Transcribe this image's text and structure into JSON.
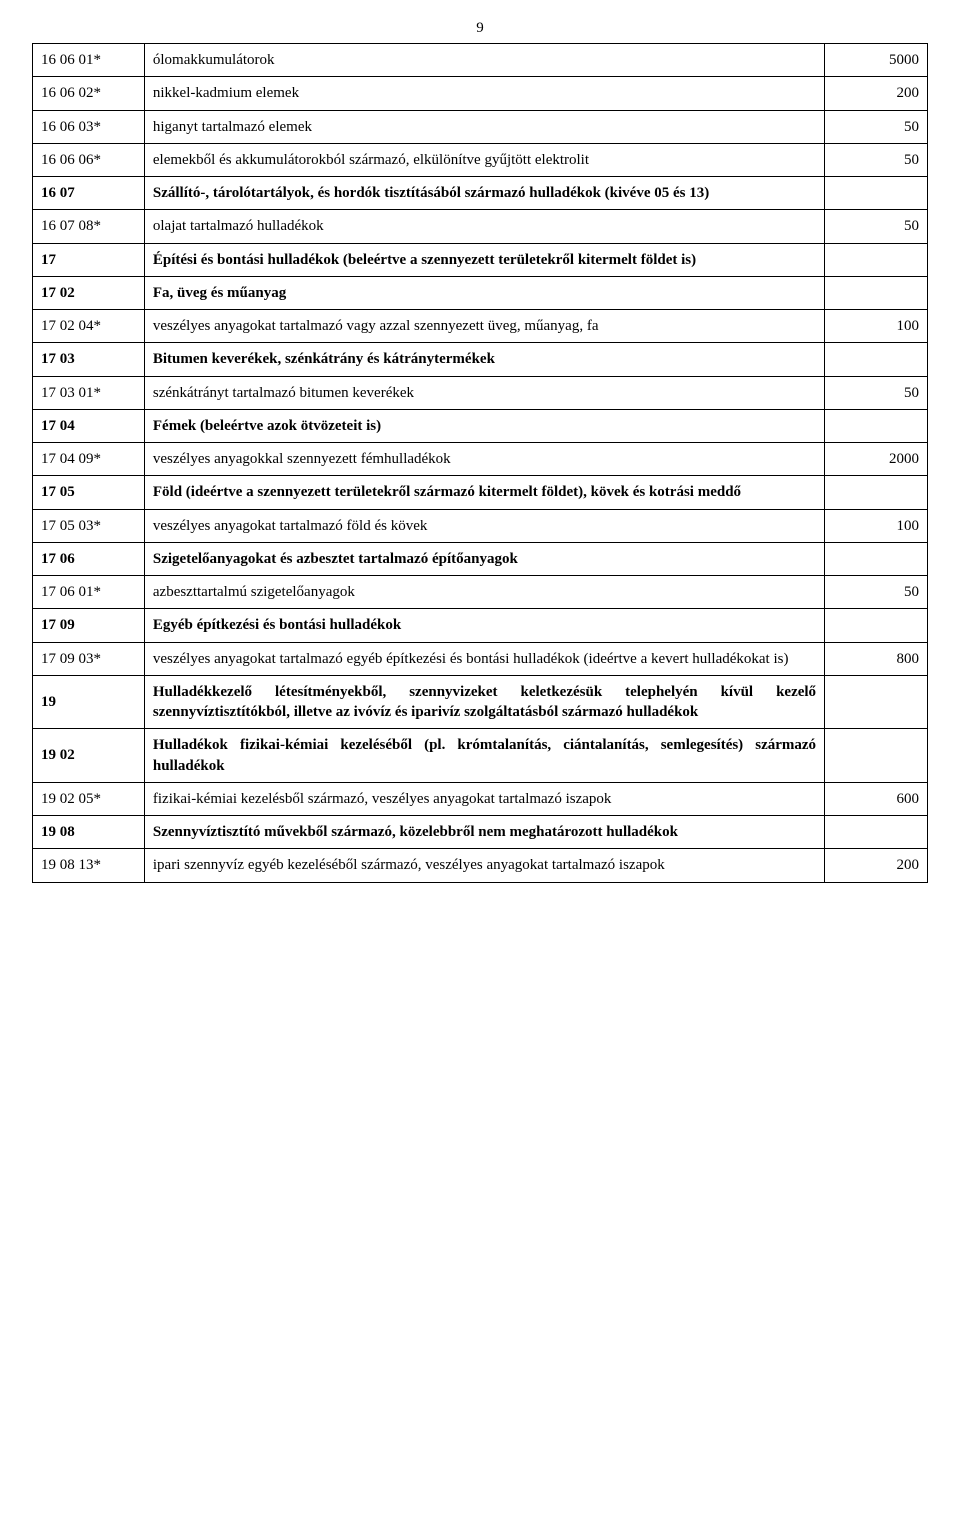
{
  "page_number": "9",
  "table": {
    "columns": {
      "code_width": "12.5%",
      "desc_width": "76%",
      "val_width": "11.5%"
    },
    "font_family": "Times New Roman",
    "font_size_pt": 12,
    "border_color": "#000000",
    "text_color": "#000000",
    "background_color": "#ffffff"
  },
  "rows": [
    {
      "code": "16 06 01*",
      "desc": "ólomakkumulátorok",
      "val": "5000",
      "bold": false
    },
    {
      "code": "16 06 02*",
      "desc": "nikkel-kadmium elemek",
      "val": "200",
      "bold": false
    },
    {
      "code": "16 06 03*",
      "desc": "higanyt tartalmazó elemek",
      "val": "50",
      "bold": false
    },
    {
      "code": "16 06 06*",
      "desc": "elemekből és akkumulátorokból származó, elkülönítve gyűjtött elektrolit",
      "val": "50",
      "bold": false
    },
    {
      "code": "16 07",
      "desc": "Szállító-, tárolótartályok, és hordók tisztításából származó hulladékok (kivéve 05 és 13)",
      "val": "",
      "bold": true
    },
    {
      "code": "16 07 08*",
      "desc": "olajat tartalmazó hulladékok",
      "val": "50",
      "bold": false
    },
    {
      "code": "17",
      "desc": "Építési és bontási hulladékok (beleértve a szennyezett területekről kitermelt földet is)",
      "val": "",
      "bold": true
    },
    {
      "code": "17 02",
      "desc": "Fa, üveg és műanyag",
      "val": "",
      "bold": true
    },
    {
      "code": "17 02 04*",
      "desc": "veszélyes anyagokat tartalmazó vagy azzal szennyezett üveg, műanyag, fa",
      "val": "100",
      "bold": false
    },
    {
      "code": "17 03",
      "desc": "Bitumen keverékek, szénkátrány és kátránytermékek",
      "val": "",
      "bold": true
    },
    {
      "code": "17 03 01*",
      "desc": "szénkátrányt tartalmazó bitumen keverékek",
      "val": "50",
      "bold": false
    },
    {
      "code": "17 04",
      "desc": "Fémek (beleértve azok ötvözeteit is)",
      "val": "",
      "bold": true
    },
    {
      "code": "17 04 09*",
      "desc": "veszélyes anyagokkal szennyezett fémhulladékok",
      "val": "2000",
      "bold": false
    },
    {
      "code": "17 05",
      "desc": "Föld (ideértve a szennyezett területekről származó kitermelt földet), kövek és kotrási meddő",
      "val": "",
      "bold": true
    },
    {
      "code": "17 05 03*",
      "desc": "veszélyes anyagokat tartalmazó föld és kövek",
      "val": "100",
      "bold": false
    },
    {
      "code": "17 06",
      "desc": "Szigetelőanyagokat és azbesztet tartalmazó építőanyagok",
      "val": "",
      "bold": true
    },
    {
      "code": "17 06 01*",
      "desc": "azbeszttartalmú szigetelőanyagok",
      "val": "50",
      "bold": false
    },
    {
      "code": "17 09",
      "desc": "Egyéb építkezési és bontási hulladékok",
      "val": "",
      "bold": true
    },
    {
      "code": "17 09 03*",
      "desc": "veszélyes anyagokat tartalmazó egyéb építkezési és bontási hulladékok (ideértve a kevert hulladékokat is)",
      "val": "800",
      "bold": false
    },
    {
      "code": "19",
      "desc": "Hulladékkezelő létesítményekből, szennyvizeket keletkezésük telephelyén kívül kezelő szennyvíztisztítókból, illetve az ivóvíz és iparivíz szolgáltatásból származó hulladékok",
      "val": "",
      "bold": true
    },
    {
      "code": "19 02",
      "desc": "Hulladékok fizikai-kémiai kezeléséből (pl. krómtalanítás, ciántalanítás, semlegesítés) származó hulladékok",
      "val": "",
      "bold": true
    },
    {
      "code": "19 02 05*",
      "desc": "fizikai-kémiai kezelésből származó, veszélyes anyagokat tartalmazó iszapok",
      "val": "600",
      "bold": false
    },
    {
      "code": "19 08",
      "desc": "Szennyvíztisztító művekből származó, közelebbről nem meghatározott hulladékok",
      "val": "",
      "bold": true
    },
    {
      "code": "19 08 13*",
      "desc": "ipari szennyvíz egyéb kezeléséből származó, veszélyes anyagokat tartalmazó iszapok",
      "val": "200",
      "bold": false
    }
  ]
}
